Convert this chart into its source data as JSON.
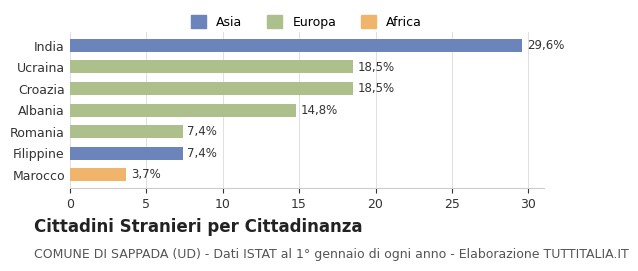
{
  "categories": [
    "India",
    "Ucraina",
    "Croazia",
    "Albania",
    "Romania",
    "Filippine",
    "Marocco"
  ],
  "values": [
    29.6,
    18.5,
    18.5,
    14.8,
    7.4,
    7.4,
    3.7
  ],
  "labels": [
    "29,6%",
    "18,5%",
    "18,5%",
    "14,8%",
    "7,4%",
    "7,4%",
    "3,7%"
  ],
  "colors": [
    "#6b84bc",
    "#adbf8a",
    "#adbf8a",
    "#adbf8a",
    "#adbf8a",
    "#6b84bc",
    "#f0b56a"
  ],
  "legend": [
    {
      "label": "Asia",
      "color": "#6b84bc"
    },
    {
      "label": "Europa",
      "color": "#adbf8a"
    },
    {
      "label": "Africa",
      "color": "#f0b56a"
    }
  ],
  "xlim": [
    0,
    31
  ],
  "xticks": [
    0,
    5,
    10,
    15,
    20,
    25,
    30
  ],
  "title": "Cittadini Stranieri per Cittadinanza",
  "subtitle": "COMUNE DI SAPPADA (UD) - Dati ISTAT al 1° gennaio di ogni anno - Elaborazione TUTTITALIA.IT",
  "title_fontsize": 12,
  "subtitle_fontsize": 9,
  "background_color": "#ffffff"
}
